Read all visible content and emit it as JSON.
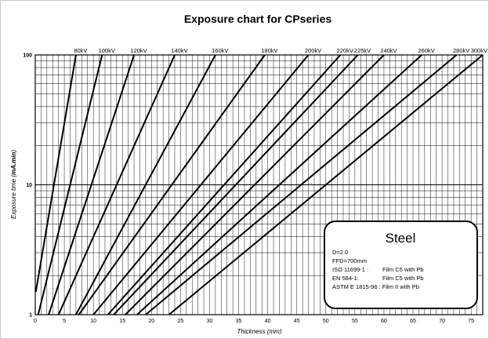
{
  "chart_data": {
    "type": "line",
    "title": "Exposure chart for CPseries",
    "xlabel": "Thickness (mm)",
    "ylabel_prefix": "Exposure time (",
    "ylabel_unit": "mA.min",
    "ylabel_suffix": ")",
    "xlim": [
      0,
      77
    ],
    "ylim": [
      1,
      100
    ],
    "y_scale": "log",
    "grid": true,
    "x_ticks": [
      "0",
      "5",
      "10",
      "15",
      "20",
      "25",
      "30",
      "35",
      "40",
      "45",
      "50",
      "55",
      "60",
      "65",
      "70",
      "75"
    ],
    "y_ticks": [
      "1",
      "10",
      "100"
    ],
    "series": [
      {
        "name": "80kV",
        "x": [
          0.1,
          7.0
        ],
        "y": [
          1.5,
          100
        ]
      },
      {
        "name": "100kV",
        "x": [
          0.5,
          11.5
        ],
        "y": [
          1,
          100
        ]
      },
      {
        "name": "120kV",
        "x": [
          2.3,
          17.0
        ],
        "y": [
          1,
          100
        ]
      },
      {
        "name": "140kV",
        "x": [
          4.0,
          24.0
        ],
        "y": [
          1,
          100
        ]
      },
      {
        "name": "160kV",
        "x": [
          7.0,
          31.0
        ],
        "y": [
          1,
          100
        ]
      },
      {
        "name": "180kV",
        "x": [
          7.5,
          39.5
        ],
        "y": [
          1,
          100
        ]
      },
      {
        "name": "200kV",
        "x": [
          10.0,
          47.0
        ],
        "y": [
          1,
          100
        ]
      },
      {
        "name": "220kV",
        "x": [
          12.5,
          52.5
        ],
        "y": [
          1,
          100
        ]
      },
      {
        "name": "225kV",
        "x": [
          13.5,
          55.5
        ],
        "y": [
          1,
          100
        ]
      },
      {
        "name": "240kV",
        "x": [
          15.5,
          60.0
        ],
        "y": [
          1,
          100
        ]
      },
      {
        "name": "260kV",
        "x": [
          17.5,
          66.5
        ],
        "y": [
          1,
          100
        ]
      },
      {
        "name": "280kV",
        "x": [
          19.0,
          72.5
        ],
        "y": [
          1,
          100
        ]
      },
      {
        "name": "300kV",
        "x": [
          23.0,
          77.0
        ],
        "y": [
          1,
          100
        ]
      }
    ]
  },
  "info_box": {
    "title": "Steel",
    "lines": [
      "D=2.0",
      "FFD=700mm",
      "ISO 11699-1 :",
      "EN 584-1:",
      "ASTM E 1815-96 : Film II with Pb"
    ],
    "values": [
      "",
      "",
      "Film C5 with Pb",
      "Film C5 with Pb",
      ""
    ]
  }
}
